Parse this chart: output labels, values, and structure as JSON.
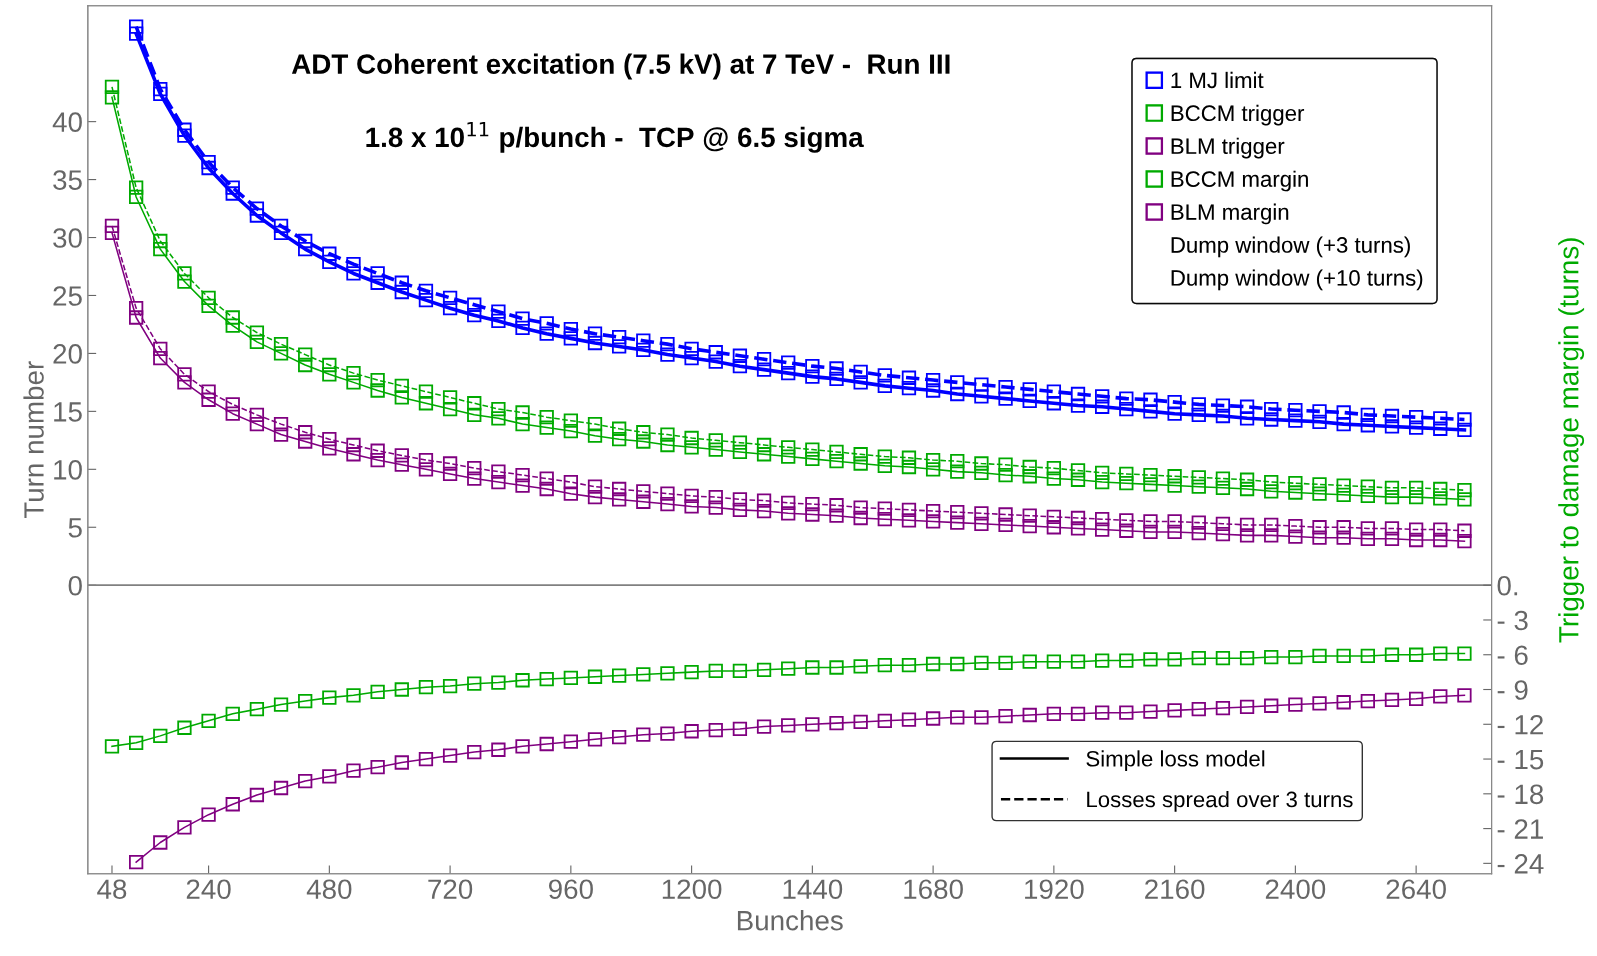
{
  "chart_data": {
    "type": "line",
    "title": "ADT Coherent excitation (7.5 kV) at 7 TeV -  Run III",
    "subtitle": "1.8 x 10$^{11}$ p/bunch -  TCP @ 6.5 sigma",
    "xlabel": "Bunches",
    "ylabel": "Turn number",
    "y2label": "Trigger to damage margin (turns)",
    "x": [
      48,
      96,
      144,
      192,
      240,
      288,
      336,
      384,
      432,
      480,
      528,
      576,
      624,
      672,
      720,
      768,
      816,
      864,
      912,
      960,
      1008,
      1056,
      1104,
      1152,
      1200,
      1248,
      1296,
      1344,
      1392,
      1440,
      1488,
      1536,
      1584,
      1632,
      1680,
      1728,
      1776,
      1824,
      1872,
      1920,
      1968,
      2016,
      2064,
      2112,
      2160,
      2208,
      2256,
      2304,
      2352,
      2400,
      2448,
      2496,
      2544,
      2592,
      2640,
      2688,
      2736
    ],
    "xlim": [
      0,
      2790
    ],
    "xticks": [
      48,
      240,
      480,
      720,
      960,
      1200,
      1440,
      1680,
      1920,
      2160,
      2400,
      2640
    ],
    "ylim": [
      -24.9,
      50
    ],
    "yticks": [
      0,
      5,
      10,
      15,
      20,
      25,
      30,
      35,
      40
    ],
    "y2lim": [
      -24.9,
      50
    ],
    "y2ticks": [
      {
        "value": 0,
        "label": "0."
      },
      {
        "value": -3,
        "label": "- 3"
      },
      {
        "value": -6,
        "label": "- 6"
      },
      {
        "value": -9,
        "label": "- 9"
      },
      {
        "value": -12,
        "label": "- 12"
      },
      {
        "value": -15,
        "label": "- 15"
      },
      {
        "value": -18,
        "label": "- 18"
      },
      {
        "value": -21,
        "label": "- 21"
      },
      {
        "value": -24,
        "label": "- 24"
      }
    ],
    "ref_lines": [
      {
        "axis": "y",
        "value": 0,
        "color": "#808080"
      }
    ],
    "grid": false,
    "legend": "right",
    "marker": "square",
    "series": [
      {
        "name": "1 MJ limit",
        "color": "#0000ff",
        "line_style": "solid",
        "values": [
          null,
          47.6,
          42.4,
          38.8,
          36.0,
          33.8,
          31.9,
          30.4,
          29.0,
          27.9,
          26.9,
          26.1,
          25.3,
          24.6,
          23.9,
          23.3,
          22.8,
          22.2,
          21.7,
          21.3,
          20.9,
          20.6,
          20.3,
          19.9,
          19.6,
          19.3,
          18.9,
          18.6,
          18.3,
          18.0,
          17.8,
          17.5,
          17.2,
          17.0,
          16.8,
          16.5,
          16.3,
          16.1,
          15.9,
          15.7,
          15.5,
          15.4,
          15.2,
          15.0,
          14.8,
          14.7,
          14.6,
          14.4,
          14.3,
          14.2,
          14.1,
          13.9,
          13.8,
          13.7,
          13.6,
          13.5,
          13.4
        ]
      },
      {
        "color": "#0000ff",
        "line_style": "dashed",
        "values": [
          null,
          48.2,
          42.8,
          39.3,
          36.5,
          34.3,
          32.5,
          31.0,
          29.7,
          28.6,
          27.7,
          26.9,
          26.1,
          25.4,
          24.8,
          24.2,
          23.6,
          23.0,
          22.6,
          22.1,
          21.7,
          21.4,
          21.1,
          20.8,
          20.4,
          20.1,
          19.8,
          19.5,
          19.2,
          18.9,
          18.7,
          18.4,
          18.1,
          17.9,
          17.7,
          17.5,
          17.3,
          17.1,
          16.9,
          16.7,
          16.5,
          16.3,
          16.1,
          16.0,
          15.8,
          15.6,
          15.5,
          15.4,
          15.2,
          15.1,
          15.0,
          14.9,
          14.7,
          14.6,
          14.5,
          14.4,
          14.3
        ]
      },
      {
        "name": "BCCM trigger",
        "color": "#00aa00",
        "line_style": "solid",
        "values": [
          42.1,
          33.5,
          29.0,
          26.2,
          24.1,
          22.4,
          21.0,
          20.0,
          19.0,
          18.2,
          17.5,
          16.8,
          16.2,
          15.7,
          15.2,
          14.7,
          14.4,
          13.9,
          13.6,
          13.3,
          12.9,
          12.6,
          12.4,
          12.1,
          11.9,
          11.7,
          11.5,
          11.3,
          11.1,
          10.9,
          10.7,
          10.5,
          10.3,
          10.2,
          10.0,
          9.8,
          9.7,
          9.5,
          9.4,
          9.2,
          9.1,
          8.9,
          8.8,
          8.7,
          8.6,
          8.5,
          8.4,
          8.3,
          8.1,
          8.0,
          7.9,
          7.8,
          7.7,
          7.6,
          7.6,
          7.5,
          7.4
        ]
      },
      {
        "color": "#00aa00",
        "line_style": "dashed",
        "values": [
          43.0,
          34.3,
          29.7,
          26.9,
          24.8,
          23.1,
          21.8,
          20.8,
          19.9,
          19.0,
          18.3,
          17.7,
          17.2,
          16.7,
          16.2,
          15.7,
          15.2,
          14.9,
          14.5,
          14.2,
          13.9,
          13.5,
          13.2,
          13.0,
          12.7,
          12.5,
          12.3,
          12.1,
          11.9,
          11.7,
          11.5,
          11.3,
          11.1,
          11.0,
          10.8,
          10.7,
          10.5,
          10.4,
          10.2,
          10.1,
          9.9,
          9.7,
          9.6,
          9.5,
          9.4,
          9.3,
          9.2,
          9.1,
          8.9,
          8.8,
          8.7,
          8.6,
          8.5,
          8.4,
          8.4,
          8.3,
          8.2
        ]
      },
      {
        "name": "BLM trigger",
        "color": "#800080",
        "line_style": "solid",
        "values": [
          30.4,
          23.1,
          19.6,
          17.5,
          16.0,
          14.8,
          13.9,
          13.0,
          12.4,
          11.8,
          11.3,
          10.8,
          10.4,
          10.0,
          9.6,
          9.2,
          8.9,
          8.6,
          8.3,
          7.9,
          7.6,
          7.4,
          7.2,
          7.0,
          6.8,
          6.7,
          6.5,
          6.4,
          6.2,
          6.1,
          6.0,
          5.8,
          5.7,
          5.6,
          5.5,
          5.4,
          5.3,
          5.2,
          5.1,
          5.0,
          4.9,
          4.8,
          4.7,
          4.6,
          4.6,
          4.5,
          4.4,
          4.3,
          4.3,
          4.2,
          4.1,
          4.1,
          4.0,
          4.0,
          3.9,
          3.9,
          3.8
        ]
      },
      {
        "color": "#800080",
        "line_style": "dashed",
        "values": [
          31.0,
          23.9,
          20.4,
          18.2,
          16.7,
          15.6,
          14.7,
          13.9,
          13.2,
          12.6,
          12.1,
          11.6,
          11.2,
          10.8,
          10.5,
          10.1,
          9.8,
          9.5,
          9.2,
          8.9,
          8.5,
          8.3,
          8.1,
          7.9,
          7.7,
          7.6,
          7.4,
          7.3,
          7.1,
          7.0,
          6.9,
          6.7,
          6.6,
          6.5,
          6.4,
          6.3,
          6.2,
          6.1,
          6.0,
          5.9,
          5.8,
          5.7,
          5.6,
          5.5,
          5.5,
          5.4,
          5.3,
          5.2,
          5.2,
          5.1,
          5.0,
          5.0,
          4.9,
          4.9,
          4.8,
          4.8,
          4.7
        ]
      },
      {
        "name": "BCCM margin",
        "color": "#00aa00",
        "line_style": "solid",
        "values": [
          -13.9,
          -13.6,
          -13.0,
          -12.3,
          -11.7,
          -11.1,
          -10.7,
          -10.3,
          -10.0,
          -9.7,
          -9.5,
          -9.2,
          -9.0,
          -8.8,
          -8.7,
          -8.5,
          -8.4,
          -8.2,
          -8.1,
          -8.0,
          -7.9,
          -7.8,
          -7.7,
          -7.6,
          -7.5,
          -7.4,
          -7.4,
          -7.3,
          -7.2,
          -7.1,
          -7.1,
          -7.0,
          -6.9,
          -6.9,
          -6.8,
          -6.8,
          -6.7,
          -6.7,
          -6.6,
          -6.6,
          -6.6,
          -6.5,
          -6.5,
          -6.4,
          -6.4,
          -6.3,
          -6.3,
          -6.3,
          -6.2,
          -6.2,
          -6.1,
          -6.1,
          -6.1,
          -6.0,
          -6.0,
          -5.9,
          -5.9
        ]
      },
      {
        "name": "BLM margin",
        "color": "#800080",
        "line_style": "solid",
        "values": [
          null,
          -23.9,
          -22.2,
          -20.9,
          -19.8,
          -18.9,
          -18.1,
          -17.5,
          -16.9,
          -16.5,
          -16.0,
          -15.7,
          -15.3,
          -15.0,
          -14.7,
          -14.4,
          -14.2,
          -13.9,
          -13.7,
          -13.5,
          -13.3,
          -13.1,
          -12.9,
          -12.8,
          -12.6,
          -12.5,
          -12.4,
          -12.2,
          -12.1,
          -12.0,
          -11.9,
          -11.8,
          -11.7,
          -11.6,
          -11.5,
          -11.4,
          -11.4,
          -11.3,
          -11.2,
          -11.1,
          -11.1,
          -11.0,
          -11.0,
          -10.9,
          -10.8,
          -10.7,
          -10.6,
          -10.5,
          -10.4,
          -10.3,
          -10.2,
          -10.1,
          -10.0,
          -9.9,
          -9.8,
          -9.6,
          -9.5
        ]
      },
      {
        "name": "Dump window (+3 turns)",
        "values": [
          null,
          null,
          null,
          null,
          null,
          null,
          null,
          null,
          null,
          null,
          null,
          null,
          null,
          null,
          null,
          null,
          null,
          null,
          null,
          null,
          null,
          null,
          null,
          null,
          null,
          null,
          null,
          null,
          null,
          null,
          null,
          null,
          null,
          null,
          null,
          null,
          null,
          null,
          null,
          null,
          null,
          null,
          null,
          null,
          null,
          null,
          null,
          null,
          null,
          null,
          null,
          null,
          null,
          null,
          null,
          null,
          null
        ]
      },
      {
        "name": "Dump window (+10 turns)",
        "values": [
          null,
          null,
          null,
          null,
          null,
          null,
          null,
          null,
          null,
          null,
          null,
          null,
          null,
          null,
          null,
          null,
          null,
          null,
          null,
          null,
          null,
          null,
          null,
          null,
          null,
          null,
          null,
          null,
          null,
          null,
          null,
          null,
          null,
          null,
          null,
          null,
          null,
          null,
          null,
          null,
          null,
          null,
          null,
          null,
          null,
          null,
          null,
          null,
          null,
          null,
          null,
          null,
          null,
          null,
          null,
          null,
          null
        ]
      },
      {
        "name": "Simple loss model",
        "color": "#000000",
        "line_style": "solid",
        "marker": "none",
        "values": [
          null,
          null,
          null,
          null,
          null,
          null,
          null,
          null,
          null,
          null,
          null,
          null,
          null,
          null,
          null,
          null,
          null,
          null,
          null,
          null,
          null,
          null,
          null,
          null,
          null,
          null,
          null,
          null,
          null,
          null,
          null,
          null,
          null,
          null,
          null,
          null,
          null,
          null,
          null,
          null,
          null,
          null,
          null,
          null,
          null,
          null,
          null,
          null,
          null,
          null,
          null,
          null,
          null,
          null,
          null,
          null,
          null
        ]
      },
      {
        "name": "Losses spread over 3 turns",
        "color": "#000000",
        "line_style": "dashed",
        "marker": "none",
        "values": [
          null,
          null,
          null,
          null,
          null,
          null,
          null,
          null,
          null,
          null,
          null,
          null,
          null,
          null,
          null,
          null,
          null,
          null,
          null,
          null,
          null,
          null,
          null,
          null,
          null,
          null,
          null,
          null,
          null,
          null,
          null,
          null,
          null,
          null,
          null,
          null,
          null,
          null,
          null,
          null,
          null,
          null,
          null,
          null,
          null,
          null,
          null,
          null,
          null,
          null,
          null,
          null,
          null,
          null,
          null,
          null,
          null
        ]
      }
    ]
  }
}
